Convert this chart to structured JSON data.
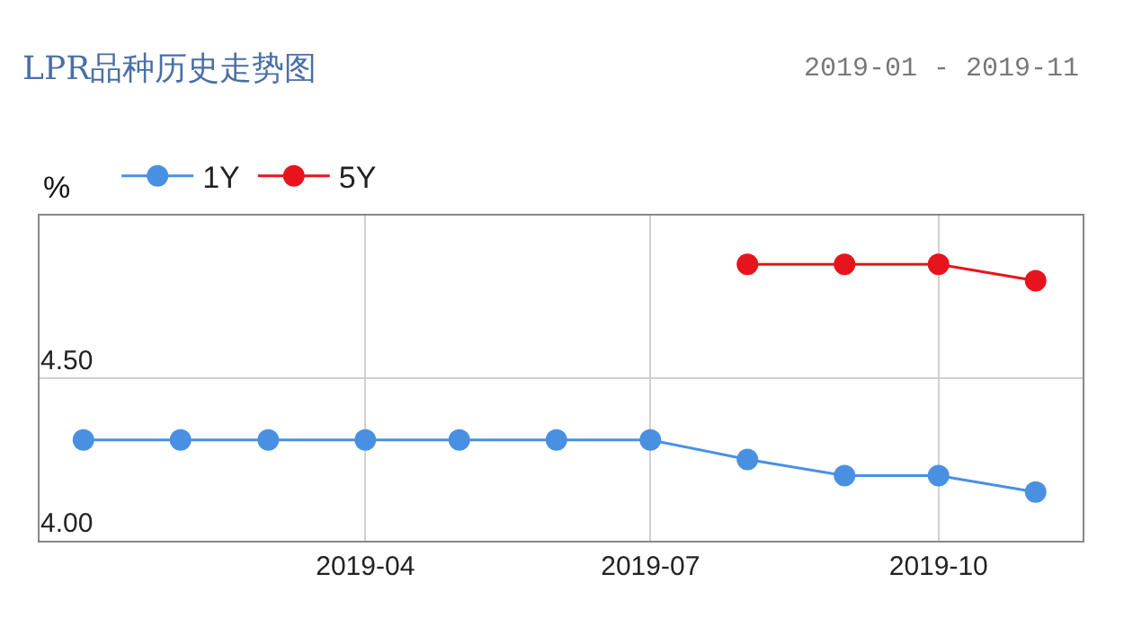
{
  "chart_data": {
    "type": "line",
    "title": "LPR品种历史走势图",
    "subtitle": "2019-01 - 2019-11",
    "ylabel": "%",
    "x": [
      "2019-01-20",
      "2019-02-20",
      "2019-03-20",
      "2019-04-20",
      "2019-05-20",
      "2019-06-20",
      "2019-07-20",
      "2019-08-20",
      "2019-09-20",
      "2019-10-20",
      "2019-11-20"
    ],
    "series": [
      {
        "name": "1Y",
        "color": "#4a90e2",
        "values": [
          4.31,
          4.31,
          4.31,
          4.31,
          4.31,
          4.31,
          4.31,
          4.25,
          4.2,
          4.2,
          4.15
        ]
      },
      {
        "name": "5Y",
        "color": "#e8141b",
        "values": [
          null,
          null,
          null,
          null,
          null,
          null,
          null,
          4.85,
          4.85,
          4.85,
          4.8
        ]
      }
    ],
    "xlim": [
      "2019-01-06",
      "2019-12-05"
    ],
    "xticks": [
      {
        "value": "2019-04-20",
        "label": "2019-04"
      },
      {
        "value": "2019-07-20",
        "label": "2019-07"
      },
      {
        "value": "2019-10-20",
        "label": "2019-10"
      }
    ],
    "ylim": [
      4.0,
      5.0
    ],
    "yticks": [
      {
        "value": 4.0,
        "label": "4.00"
      },
      {
        "value": 4.5,
        "label": "4.50"
      }
    ],
    "grid": true,
    "legend": "top left",
    "marker": "circle",
    "line_style": "solid"
  }
}
